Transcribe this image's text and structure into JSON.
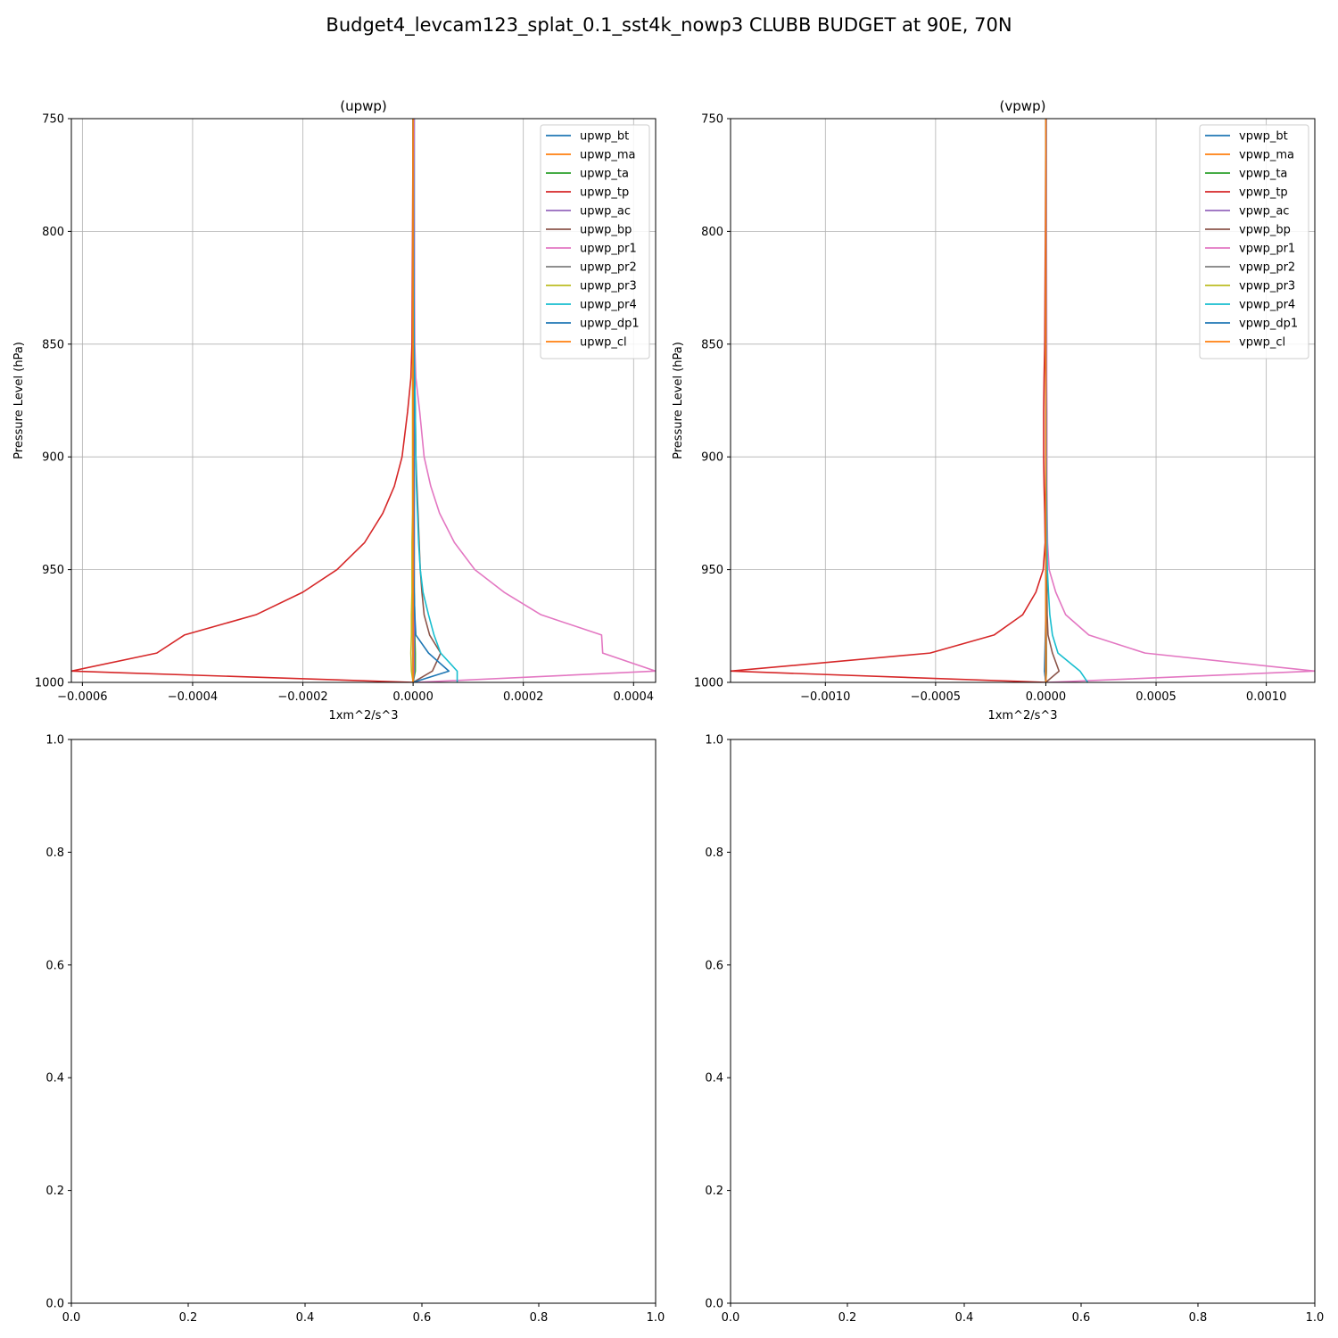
{
  "title": "Budget4_levcam123_splat_0.1_sst4k_nowp3 CLUBB BUDGET at 90E, 70N",
  "colors": {
    "bt": "#1f77b4",
    "ma": "#ff7f0e",
    "ta": "#2ca02c",
    "tp": "#d62728",
    "ac": "#9467bd",
    "bp": "#8c564b",
    "pr1": "#e377c2",
    "pr2": "#7f7f7f",
    "pr3": "#bcbd22",
    "pr4": "#17becf",
    "dp1": "#1f77b4",
    "cl": "#ff7f0e"
  },
  "chart_data": [
    {
      "type": "line",
      "title": "(upwp)",
      "xlabel": "1xm^2/s^3",
      "ylabel": "Pressure Level (hPa)",
      "xlim": [
        -0.00062,
        0.00044
      ],
      "ylim": [
        1000,
        750
      ],
      "xticks": [
        -0.0006,
        -0.0004,
        -0.0002,
        0.0,
        0.0002,
        0.0004
      ],
      "xtick_labels": [
        "−0.0006",
        "−0.0004",
        "−0.0002",
        "0.0000",
        "0.0002",
        "0.0004"
      ],
      "yticks": [
        750,
        800,
        850,
        900,
        950,
        1000
      ],
      "ytick_labels": [
        "750",
        "800",
        "850",
        "900",
        "950",
        "1000"
      ],
      "grid": true,
      "legend": "top-right",
      "levels": [
        750,
        800,
        850,
        865,
        880,
        900,
        913,
        925,
        938,
        950,
        960,
        970,
        979,
        987,
        995,
        1000
      ],
      "series": [
        {
          "name": "upwp_bt",
          "key": "bt",
          "x": [
            0,
            0,
            0,
            0,
            0,
            0,
            0,
            0,
            0,
            0,
            0,
            0,
            0,
            0,
            0,
            0
          ]
        },
        {
          "name": "upwp_ma",
          "key": "ma",
          "x": [
            0,
            0,
            0,
            0,
            0,
            0,
            0,
            0,
            0,
            0,
            0,
            0,
            0,
            0,
            0,
            0
          ]
        },
        {
          "name": "upwp_ta",
          "key": "ta",
          "x": [
            2e-06,
            2e-06,
            2e-06,
            2e-06,
            2e-06,
            2e-06,
            2e-06,
            2e-06,
            2e-06,
            2e-06,
            2e-06,
            3e-06,
            3e-06,
            4e-06,
            4e-06,
            0.0
          ]
        },
        {
          "name": "upwp_tp",
          "key": "tp",
          "x": [
            0.0,
            -1e-06,
            -2e-06,
            -4e-06,
            -1e-05,
            -2e-05,
            -3.4e-05,
            -5.5e-05,
            -8.8e-05,
            -0.000138,
            -0.0002,
            -0.000285,
            -0.000415,
            -0.000465,
            -0.00062,
            0.0
          ]
        },
        {
          "name": "upwp_ac",
          "key": "ac",
          "x": [
            2e-06,
            2e-06,
            2e-06,
            2e-06,
            2e-06,
            2e-06,
            2e-06,
            2e-06,
            2e-06,
            2e-06,
            2e-06,
            2e-06,
            2e-06,
            2e-06,
            2e-06,
            0.0
          ]
        },
        {
          "name": "upwp_bp",
          "key": "bp",
          "x": [
            0.0,
            1e-06,
            2e-06,
            3e-06,
            4e-06,
            5e-06,
            7e-06,
            9e-06,
            1.1e-05,
            1.3e-05,
            1.6e-05,
            2e-05,
            3e-05,
            5e-05,
            3.5e-05,
            0.0
          ]
        },
        {
          "name": "upwp_pr1",
          "key": "pr1",
          "x": [
            1e-06,
            2e-06,
            3e-06,
            5e-06,
            1.2e-05,
            2e-05,
            3.2e-05,
            4.8e-05,
            7.5e-05,
            0.000112,
            0.000165,
            0.000232,
            0.000342,
            0.000344,
            0.00044,
            5e-06
          ]
        },
        {
          "name": "upwp_pr2",
          "key": "pr2",
          "x": [
            0,
            0,
            0,
            0,
            0,
            0,
            0,
            0,
            0,
            0,
            0,
            0,
            0,
            0,
            0,
            0
          ]
        },
        {
          "name": "upwp_pr3",
          "key": "pr3",
          "x": [
            0.0,
            0.0,
            0.0,
            -1e-06,
            -1e-06,
            -1e-06,
            -1e-06,
            -1e-06,
            -2e-06,
            -2e-06,
            -2e-06,
            -3e-06,
            -3e-06,
            -4e-06,
            -3e-06,
            0.0
          ]
        },
        {
          "name": "upwp_pr4",
          "key": "pr4",
          "x": [
            0.0,
            1e-06,
            2e-06,
            3e-06,
            4e-06,
            5e-06,
            6e-06,
            8e-06,
            1e-05,
            1.3e-05,
            1.8e-05,
            2.8e-05,
            3.8e-05,
            5e-05,
            8e-05,
            8e-05
          ]
        },
        {
          "name": "upwp_dp1",
          "key": "dp1",
          "x": [
            0.0,
            1e-06,
            1e-06,
            1e-06,
            1e-06,
            1e-06,
            1e-06,
            1e-06,
            1e-06,
            1e-06,
            2e-06,
            3e-06,
            5e-06,
            2.8e-05,
            6.5e-05,
            0.0
          ]
        },
        {
          "name": "upwp_cl",
          "key": "cl",
          "x": [
            0.0,
            0.0,
            0.0,
            0.0,
            0.0,
            0.0,
            0.0,
            0.0,
            0.0,
            0.0,
            0.0,
            0.0,
            0.0,
            0.0,
            0.0,
            0.0
          ]
        }
      ]
    },
    {
      "type": "line",
      "title": "(vpwp)",
      "xlabel": "1xm^2/s^3",
      "ylabel": "Pressure Level (hPa)",
      "xlim": [
        -0.00143,
        0.00122
      ],
      "ylim": [
        1000,
        750
      ],
      "xticks": [
        -0.001,
        -0.0005,
        0.0,
        0.0005,
        0.001
      ],
      "xtick_labels": [
        "−0.0010",
        "−0.0005",
        "0.0000",
        "0.0005",
        "0.0010"
      ],
      "yticks": [
        750,
        800,
        850,
        900,
        950,
        1000
      ],
      "ytick_labels": [
        "750",
        "800",
        "850",
        "900",
        "950",
        "1000"
      ],
      "grid": true,
      "legend": "top-right",
      "levels": [
        750,
        800,
        850,
        865,
        880,
        900,
        913,
        925,
        938,
        950,
        960,
        970,
        979,
        987,
        995,
        1000
      ],
      "series": [
        {
          "name": "vpwp_bt",
          "key": "bt",
          "x": [
            0,
            0,
            0,
            0,
            0,
            0,
            0,
            0,
            0,
            0,
            0,
            0,
            0,
            0,
            -5e-06,
            0.0
          ]
        },
        {
          "name": "vpwp_ma",
          "key": "ma",
          "x": [
            0,
            0,
            0,
            0,
            0,
            0,
            0,
            0,
            0,
            0,
            0,
            0,
            0,
            0,
            0,
            0
          ]
        },
        {
          "name": "vpwp_ta",
          "key": "ta",
          "x": [
            2e-06,
            2e-06,
            2e-06,
            2e-06,
            2e-06,
            2e-06,
            2e-06,
            2e-06,
            2e-06,
            2e-06,
            2e-06,
            2e-06,
            2e-06,
            3e-06,
            3e-06,
            0.0
          ]
        },
        {
          "name": "vpwp_tp",
          "key": "tp",
          "x": [
            0.0,
            -2e-06,
            -5e-06,
            -8e-06,
            -1e-05,
            -1e-05,
            -8e-06,
            -5e-06,
            -3e-06,
            -1.2e-05,
            -4.5e-05,
            -0.000105,
            -0.000235,
            -0.000525,
            -0.00143,
            0.0
          ]
        },
        {
          "name": "vpwp_ac",
          "key": "ac",
          "x": [
            2e-06,
            2e-06,
            2e-06,
            2e-06,
            2e-06,
            2e-06,
            2e-06,
            2e-06,
            2e-06,
            2e-06,
            2e-06,
            2e-06,
            2e-06,
            2e-06,
            2e-06,
            0.0
          ]
        },
        {
          "name": "vpwp_bp",
          "key": "bp",
          "x": [
            0.0,
            1e-06,
            2e-06,
            2e-06,
            2e-06,
            2e-06,
            2e-06,
            2e-06,
            3e-06,
            4e-06,
            5e-06,
            6e-06,
            1e-05,
            3e-05,
            6e-05,
            0.0
          ]
        },
        {
          "name": "vpwp_pr1",
          "key": "pr1",
          "x": [
            2e-06,
            3e-06,
            4e-06,
            4e-06,
            5e-06,
            5e-06,
            5e-06,
            6e-06,
            8e-06,
            1.5e-05,
            4.5e-05,
            9e-05,
            0.000195,
            0.00045,
            0.00122,
            8e-06
          ]
        },
        {
          "name": "vpwp_pr2",
          "key": "pr2",
          "x": [
            0,
            0,
            0,
            0,
            0,
            0,
            0,
            0,
            0,
            0,
            0,
            0,
            0,
            0,
            0,
            0
          ]
        },
        {
          "name": "vpwp_pr3",
          "key": "pr3",
          "x": [
            0.0,
            0.0,
            0.0,
            0.0,
            0.0,
            0.0,
            0.0,
            0.0,
            0.0,
            0.0,
            0.0,
            0.0,
            0.0,
            0.0,
            0.0,
            0.0
          ]
        },
        {
          "name": "vpwp_pr4",
          "key": "pr4",
          "x": [
            0.0,
            1e-06,
            1e-06,
            1e-06,
            2e-06,
            2e-06,
            3e-06,
            4e-06,
            5e-06,
            7e-06,
            1.2e-05,
            1.8e-05,
            3e-05,
            5.5e-05,
            0.000155,
            0.00019
          ]
        },
        {
          "name": "vpwp_dp1",
          "key": "dp1",
          "x": [
            0.0,
            0.0,
            0.0,
            0.0,
            0.0,
            0.0,
            0.0,
            0.0,
            0.0,
            0.0,
            0.0,
            0.0,
            -2e-06,
            -4e-06,
            -6e-06,
            0.0
          ]
        },
        {
          "name": "vpwp_cl",
          "key": "cl",
          "x": [
            0.0,
            0.0,
            0.0,
            0.0,
            0.0,
            0.0,
            0.0,
            0.0,
            0.0,
            0.0,
            0.0,
            0.0,
            0.0,
            0.0,
            0.0,
            0.0
          ]
        }
      ]
    },
    {
      "type": "line",
      "title": "",
      "xlabel": "",
      "ylabel": "",
      "xlim": [
        0.0,
        1.0
      ],
      "ylim": [
        0.0,
        1.0
      ],
      "xticks": [
        0.0,
        0.2,
        0.4,
        0.6,
        0.8,
        1.0
      ],
      "xtick_labels": [
        "0.0",
        "0.2",
        "0.4",
        "0.6",
        "0.8",
        "1.0"
      ],
      "yticks": [
        0.0,
        0.2,
        0.4,
        0.6,
        0.8,
        1.0
      ],
      "ytick_labels": [
        "0.0",
        "0.2",
        "0.4",
        "0.6",
        "0.8",
        "1.0"
      ],
      "grid": false,
      "series": []
    },
    {
      "type": "line",
      "title": "",
      "xlabel": "",
      "ylabel": "",
      "xlim": [
        0.0,
        1.0
      ],
      "ylim": [
        0.0,
        1.0
      ],
      "xticks": [
        0.0,
        0.2,
        0.4,
        0.6,
        0.8,
        1.0
      ],
      "xtick_labels": [
        "0.0",
        "0.2",
        "0.4",
        "0.6",
        "0.8",
        "1.0"
      ],
      "yticks": [
        0.0,
        0.2,
        0.4,
        0.6,
        0.8,
        1.0
      ],
      "ytick_labels": [
        "0.0",
        "0.2",
        "0.4",
        "0.6",
        "0.8",
        "1.0"
      ],
      "grid": false,
      "series": []
    }
  ]
}
